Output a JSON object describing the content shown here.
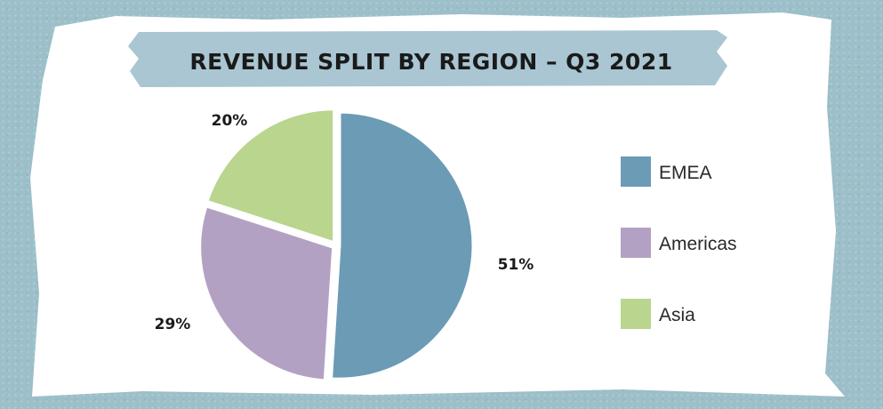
{
  "chart_data": {
    "type": "pie",
    "title": "REVENUE SPLIT BY REGION – Q3 2021",
    "slices": [
      {
        "name": "EMEA",
        "value": 51,
        "label": "51%",
        "color": "#6b9bb5"
      },
      {
        "name": "Americas",
        "value": 29,
        "label": "29%",
        "color": "#b3a1c3"
      },
      {
        "name": "Asia",
        "value": 20,
        "label": "20%",
        "color": "#b9d58e"
      }
    ],
    "legend_position": "right"
  },
  "colors": {
    "background": "#9cbfc9",
    "banner": "#a9c6d2",
    "card": "#ffffff"
  }
}
